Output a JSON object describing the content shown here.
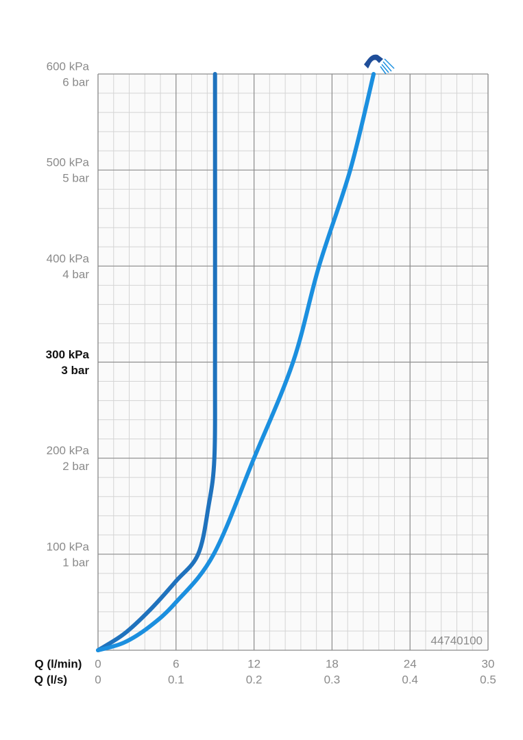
{
  "chart_data": {
    "type": "line",
    "xlabel": "Q (l/min)",
    "x2label": "Q (l/s)",
    "annotation": "44740100",
    "xlim": [
      0,
      30
    ],
    "xticks": [
      0,
      6,
      12,
      18,
      24,
      30
    ],
    "x2lim": [
      0,
      0.5
    ],
    "x2ticks": [
      0,
      0.1,
      0.2,
      0.3,
      0.4,
      0.5
    ],
    "ylim": [
      0,
      600
    ],
    "yticks": [
      {
        "value": 100,
        "label": "100 kPa"
      },
      {
        "value": 200,
        "label": "200 kPa"
      },
      {
        "value": 300,
        "label": "300 kPa"
      },
      {
        "value": 400,
        "label": "400 kPa"
      },
      {
        "value": 500,
        "label": "500 kPa"
      },
      {
        "value": 600,
        "label": "600 kPa"
      }
    ],
    "y2lim": [
      0,
      6
    ],
    "y2ticks": [
      {
        "value": 1,
        "label": "1 bar"
      },
      {
        "value": 2,
        "label": "2 bar"
      },
      {
        "value": 3,
        "label": "3 bar"
      },
      {
        "value": 4,
        "label": "4 bar"
      },
      {
        "value": 5,
        "label": "5 bar"
      },
      {
        "value": 6,
        "label": "6 bar"
      }
    ],
    "bold_ytick": 300,
    "grid": true,
    "minor_grid": {
      "x": 1.2,
      "y": 20
    },
    "series": [
      {
        "color": "#1f72bd",
        "x": [
          0,
          2,
          4,
          6,
          7.7,
          8.5,
          8.95,
          9,
          9
        ],
        "values": [
          0,
          17,
          42,
          72,
          100,
          150,
          200,
          300,
          600
        ]
      },
      {
        "color": "#1b8fdf",
        "x": [
          0,
          2,
          4,
          6,
          8.9,
          12,
          15,
          17,
          19.4,
          21.2
        ],
        "values": [
          0,
          8,
          25,
          50,
          100,
          200,
          300,
          400,
          500,
          600
        ]
      }
    ]
  }
}
